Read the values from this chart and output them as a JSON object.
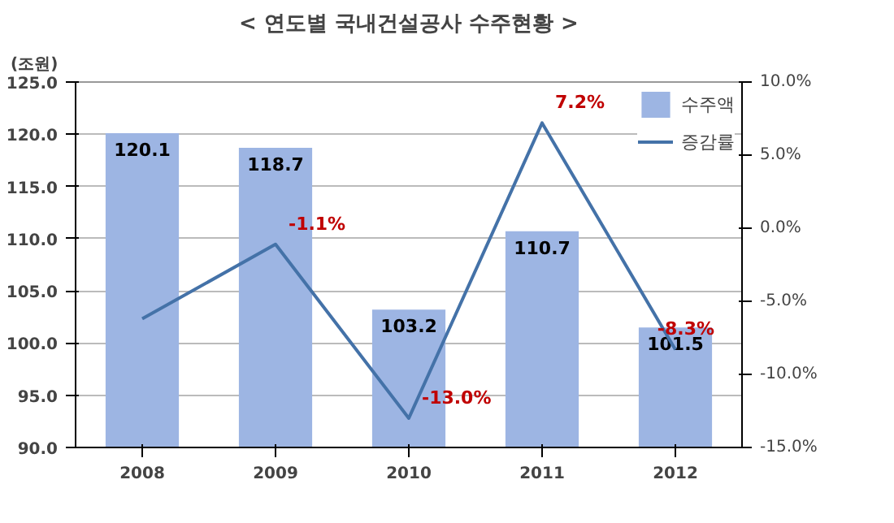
{
  "chart_data": {
    "type": "bar",
    "title": "< 연도별 국내건설공사 수주현황 >",
    "ylabel": "(조원)",
    "categories": [
      "2008",
      "2009",
      "2010",
      "2011",
      "2012"
    ],
    "series": [
      {
        "name": "수주액",
        "color": "#9db5e3",
        "values": [
          120.1,
          118.7,
          103.2,
          110.7,
          101.5
        ],
        "value_labels": [
          "120.1",
          "118.7",
          "103.2",
          "110.7",
          "101.5"
        ]
      },
      {
        "name": "증감률",
        "type": "line",
        "axis": "y2",
        "color": "#4472a8",
        "values": [
          -6.2,
          -1.1,
          -13.0,
          7.2,
          -8.3
        ],
        "value_labels": [
          null,
          "-1.1%",
          "-13.0%",
          "7.2%",
          "-8.3%"
        ]
      }
    ],
    "ylim": [
      90,
      125
    ],
    "yticks": [
      {
        "value": 90,
        "label": "90.0"
      },
      {
        "value": 95,
        "label": "95.0"
      },
      {
        "value": 100,
        "label": "100.0"
      },
      {
        "value": 105,
        "label": "105.0"
      },
      {
        "value": 110,
        "label": "110.0"
      },
      {
        "value": 115,
        "label": "115.0"
      },
      {
        "value": 120,
        "label": "120.0"
      },
      {
        "value": 125,
        "label": "125.0"
      }
    ],
    "y2lim": [
      -15,
      10
    ],
    "y2ticks": [
      {
        "value": -15,
        "label": "-15.0%"
      },
      {
        "value": -10,
        "label": "-10.0%"
      },
      {
        "value": -5,
        "label": "-5.0%"
      },
      {
        "value": 0,
        "label": "0.0%"
      },
      {
        "value": 5,
        "label": "5.0%"
      },
      {
        "value": 10,
        "label": "10.0%"
      }
    ],
    "grid": "y",
    "legend": "top right",
    "marker": "none",
    "line_style": "solid"
  }
}
